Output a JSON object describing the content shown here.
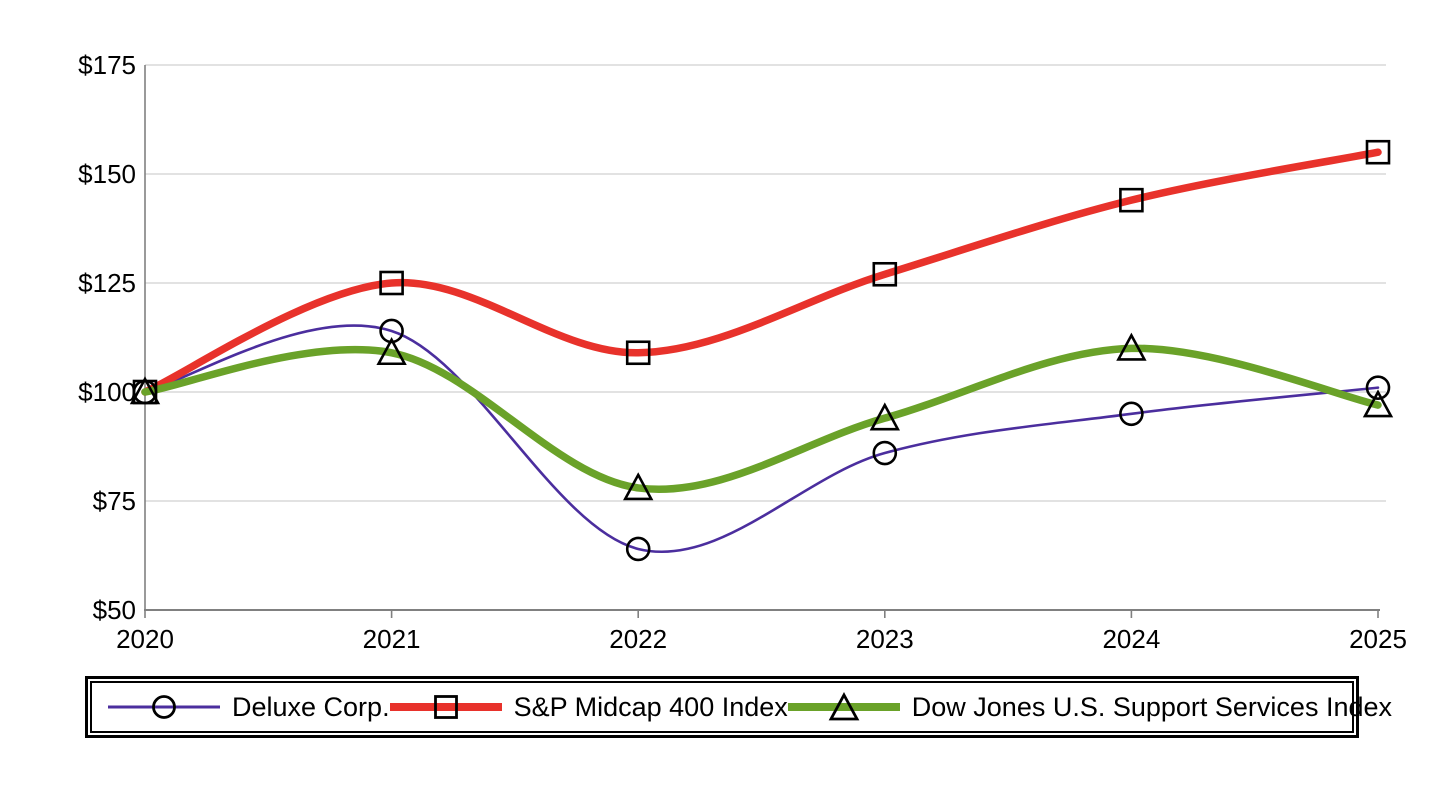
{
  "chart_data": {
    "type": "line",
    "title": "",
    "x_tick_labels": [
      "2020",
      "2021",
      "2022",
      "2023",
      "2024",
      "2025"
    ],
    "y_axis": {
      "tick_labels": [
        "$175",
        "$150",
        "$125",
        "$100",
        "$75",
        "$50"
      ],
      "tick_values": [
        175,
        150,
        125,
        100,
        75,
        50
      ],
      "min": 50,
      "max": 175,
      "unit_prefix": "$"
    },
    "grid": "horizontal-only",
    "legend_position": "bottom-boxed",
    "series": [
      {
        "name": "Deluxe Corp.",
        "marker": "circle",
        "color": "#4B2E9E",
        "line_weight": "thin",
        "values": [
          100,
          114,
          64,
          86,
          95,
          101
        ]
      },
      {
        "name": "S&P Midcap 400 Index",
        "marker": "square",
        "color": "#E8322B",
        "line_weight": "thick",
        "values": [
          100,
          125,
          109,
          127,
          144,
          155
        ]
      },
      {
        "name": "Dow Jones U.S. Support Services Index",
        "marker": "triangle",
        "color": "#6AA229",
        "line_weight": "thick",
        "values": [
          100,
          109,
          78,
          94,
          110,
          97
        ]
      }
    ]
  },
  "colors": {
    "background": "#ffffff",
    "gridline": "#d9d9d9",
    "axis": "#808080",
    "marker_stroke": "#000000",
    "legend_border": "#000000",
    "text": "#000000"
  }
}
